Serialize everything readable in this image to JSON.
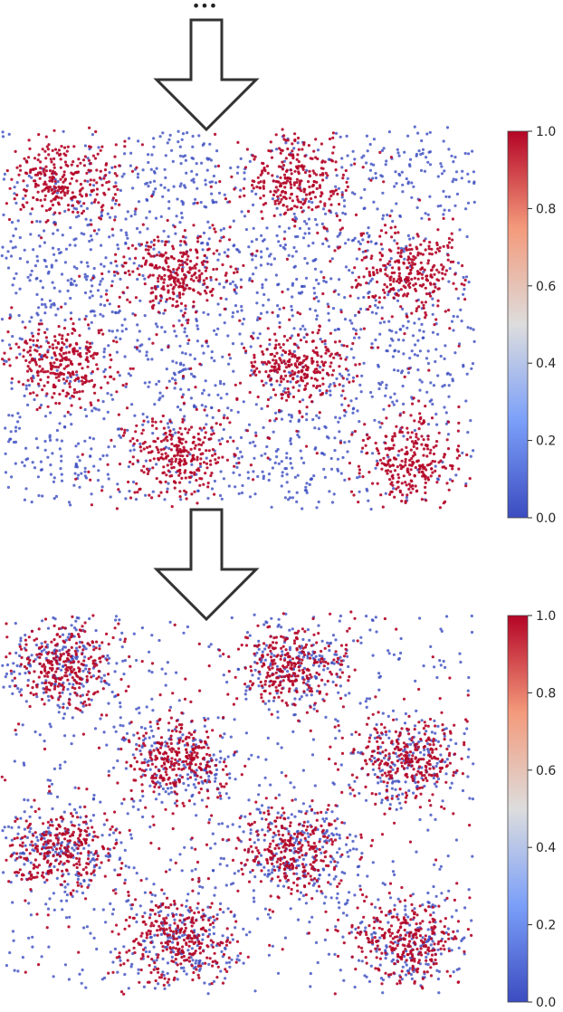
{
  "figure": {
    "continuation_marker": "•••",
    "colormap": "coolwarm",
    "colors": {
      "arrow_stroke": "#333333",
      "arrow_fill": "#ffffff",
      "cmap_low": "#3b4cc0",
      "cmap_mid": "#dddddd",
      "cmap_high": "#b40426"
    }
  },
  "chart_data": [
    {
      "type": "scatter",
      "title": "",
      "xlabel": "",
      "ylabel": "",
      "axes_visible": false,
      "grid": false,
      "color_value_range": [
        0.0,
        1.0
      ],
      "colorbar": {
        "position": "right",
        "ticks": [
          0.0,
          0.2,
          0.4,
          0.6,
          0.8,
          1.0
        ],
        "tick_labels": [
          "0.0",
          "0.2",
          "0.4",
          "0.6",
          "0.8",
          "1.0"
        ]
      },
      "clusters": {
        "layout": "3 alternating columns x 4 rows, 8 dense clusters",
        "label_1_centers": [
          [
            0.5,
            3.5
          ],
          [
            2.5,
            3.5
          ],
          [
            1.5,
            2.5
          ],
          [
            3.5,
            2.5
          ],
          [
            0.5,
            1.5
          ],
          [
            2.5,
            1.5
          ],
          [
            1.5,
            0.5
          ],
          [
            3.5,
            0.5
          ]
        ],
        "label_1_color_value": 1.0,
        "label_0_color_value": 0.0,
        "label_0_distribution": "diffuse, filling gaps between clusters",
        "approx_points_label_1": 2400,
        "approx_points_label_0": 1800
      }
    },
    {
      "type": "scatter",
      "title": "",
      "xlabel": "",
      "ylabel": "",
      "axes_visible": false,
      "grid": false,
      "color_value_range": [
        0.0,
        1.0
      ],
      "colorbar": {
        "position": "right",
        "ticks": [
          0.0,
          0.2,
          0.4,
          0.6,
          0.8,
          1.0
        ],
        "tick_labels": [
          "0.0",
          "0.2",
          "0.4",
          "0.6",
          "0.8",
          "1.0"
        ]
      },
      "clusters": {
        "layout": "3 alternating columns x 4 rows, 8 dense clusters",
        "label_1_centers": [
          [
            0.5,
            3.5
          ],
          [
            2.5,
            3.5
          ],
          [
            1.5,
            2.5
          ],
          [
            3.5,
            2.5
          ],
          [
            0.5,
            1.5
          ],
          [
            2.5,
            1.5
          ],
          [
            1.5,
            0.5
          ],
          [
            3.5,
            0.5
          ]
        ],
        "label_1_color_value": 1.0,
        "label_0_color_value": 0.0,
        "label_0_distribution": "concentrated inside cluster cores, sparse between clusters",
        "approx_points_label_1": 2400,
        "approx_points_label_0": 1800
      }
    }
  ]
}
